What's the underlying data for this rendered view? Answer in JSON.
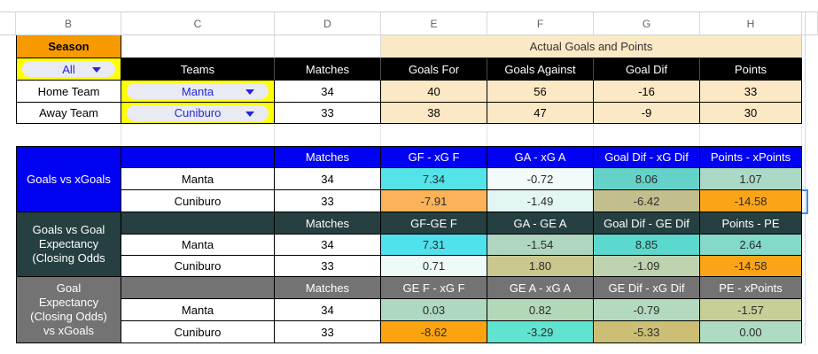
{
  "column_letters": [
    "B",
    "C",
    "D",
    "E",
    "F",
    "G",
    "H"
  ],
  "palette": {
    "season_orange": "#F79A00",
    "banner_peach": "#FBE8C4",
    "filter_yellow": "#FFFF00",
    "header_black": "#000000",
    "dropdown_text_blue": "#2626D8",
    "section1_blue": "#0202F2",
    "section2_teal": "#263F40",
    "section3_gray": "#737373",
    "selection_blue": "#4A86E8"
  },
  "top": {
    "season_label": "Season",
    "season_filter_value": "All",
    "banner_title": "Actual Goals and Points",
    "header_teams": "Teams",
    "header_matches": "Matches",
    "header_goals_for": "Goals For",
    "header_goals_against": "Goals Against",
    "header_goal_dif": "Goal Dif",
    "header_points": "Points",
    "rows": [
      {
        "label": "Home Team",
        "team": "Manta",
        "matches": "34",
        "goals_for": "40",
        "goals_against": "56",
        "goal_dif": "-16",
        "points": "33"
      },
      {
        "label": "Away Team",
        "team": "Cuniburo",
        "matches": "33",
        "goals_for": "38",
        "goals_against": "47",
        "goal_dif": "-9",
        "points": "30"
      }
    ]
  },
  "sections": [
    {
      "label": "Goals vs xGoals",
      "color": "#0202F2",
      "matches_header": "Matches",
      "value_headers": [
        "GF - xG F",
        "GA - xG A",
        "Goal Dif - xG Dif",
        "Points - xPoints"
      ],
      "rows": [
        {
          "team": "Manta",
          "matches": "34",
          "values": [
            "7.34",
            "-0.72",
            "8.06",
            "1.07"
          ],
          "cell_colors": [
            "#53E4E9",
            "#F2FBFA",
            "#64D2C8",
            "#ABD9C7"
          ]
        },
        {
          "team": "Cuniburo",
          "matches": "33",
          "values": [
            "-7.91",
            "-1.49",
            "-6.42",
            "-14.58"
          ],
          "cell_colors": [
            "#FBB259",
            "#E3F6F4",
            "#C3BE8D",
            "#FCA417"
          ]
        }
      ]
    },
    {
      "label": "Goals vs Goal Expectancy (Closing Odds",
      "color": "#263F40",
      "matches_header": "Matches",
      "value_headers": [
        "GF-GE F",
        "GA - GE A",
        "Goal Dif - GE Dif",
        "Points - PE"
      ],
      "rows": [
        {
          "team": "Manta",
          "matches": "34",
          "values": [
            "7.31",
            "-1.54",
            "8.85",
            "2.64"
          ],
          "cell_colors": [
            "#50E2EC",
            "#AFD6C0",
            "#5CD9CE",
            "#84DAC9"
          ]
        },
        {
          "team": "Cuniburo",
          "matches": "33",
          "values": [
            "0.71",
            "1.80",
            "-1.09",
            "-14.58"
          ],
          "cell_colors": [
            "#EDFAF9",
            "#CAC78F",
            "#BED2AF",
            "#FCA417"
          ]
        }
      ]
    },
    {
      "label": "Goal Expectancy (Closing Odds) vs xGoals",
      "color": "#737373",
      "matches_header": "Matches",
      "value_headers": [
        "GE F - xG F",
        "GE A - xG A",
        "GE Dif - xG Dif",
        "PE - xPoints"
      ],
      "rows": [
        {
          "team": "Manta",
          "matches": "34",
          "values": [
            "0.03",
            "0.82",
            "-0.79",
            "-1.57"
          ],
          "cell_colors": [
            "#AED9C0",
            "#B3D8B9",
            "#B3DABE",
            "#C7CF97"
          ]
        },
        {
          "team": "Cuniburo",
          "matches": "33",
          "values": [
            "-8.62",
            "-3.29",
            "-5.33",
            "0.00"
          ],
          "cell_colors": [
            "#FBA410",
            "#60E4D1",
            "#CCBE74",
            "#AEDCC3"
          ]
        }
      ]
    }
  ]
}
